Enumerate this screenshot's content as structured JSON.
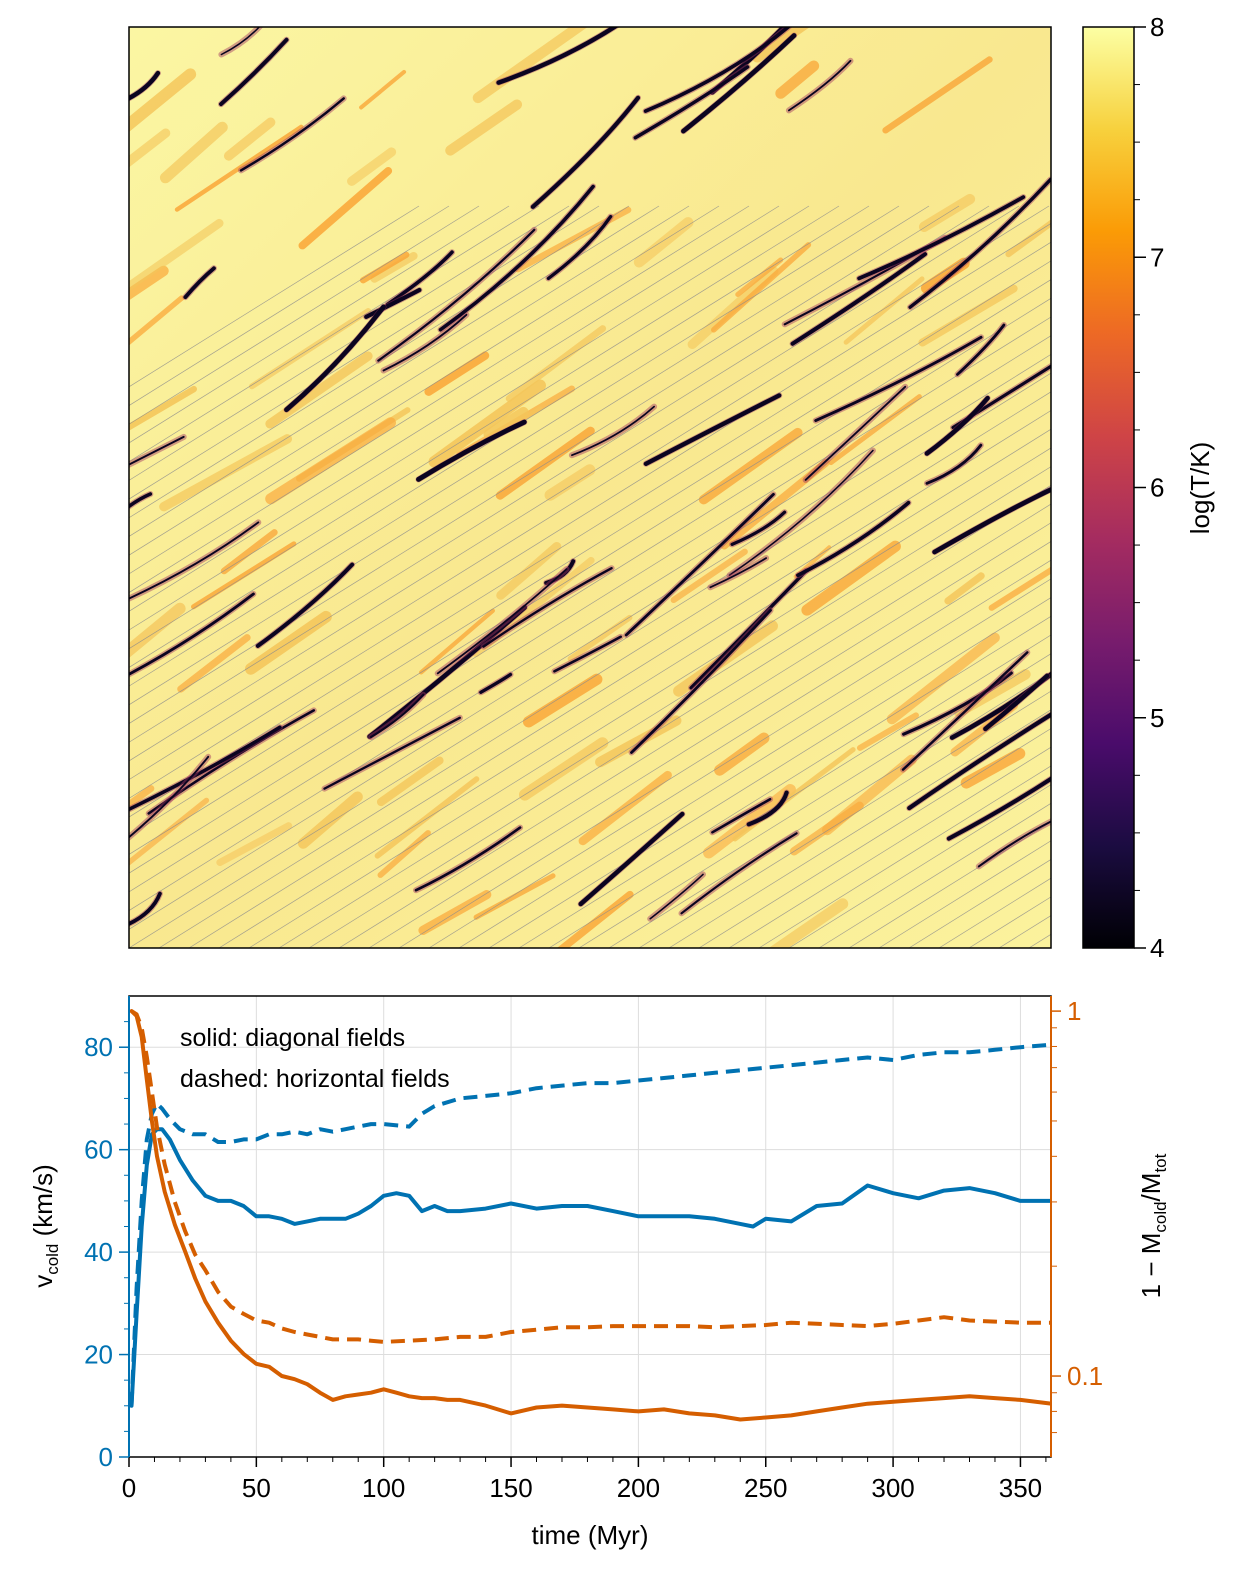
{
  "colors": {
    "blue": "#0072b2",
    "orange": "#d55e00",
    "inferno": [
      "#000004",
      "#1b0c41",
      "#4a0c6b",
      "#781c6d",
      "#a52c60",
      "#cf4446",
      "#ed6925",
      "#fb9b06",
      "#f7d13d",
      "#fcffa4"
    ]
  },
  "chart_data": [
    {
      "type": "heatmap",
      "title": "",
      "colorbar": {
        "label": "log(T/K)",
        "range": [
          4,
          8
        ],
        "ticks": [
          4,
          5,
          6,
          7,
          8
        ],
        "tick_labels": [
          "4",
          "5",
          "6",
          "7",
          "8"
        ],
        "colormap": "inferno"
      },
      "field_lines": "diagonal"
    },
    {
      "type": "line",
      "xlabel": "time (Myr)",
      "ylabel_left": "v",
      "ylabel_left_sub": "cold",
      "ylabel_left_unit": " (km/s)",
      "ylabel_right": "1 − M",
      "ylabel_right_sub1": "cold",
      "ylabel_right_mid": "/M",
      "ylabel_right_sub2": "tot",
      "xlim": [
        0,
        362
      ],
      "ylim_left": [
        0,
        90
      ],
      "ylim_right_log": [
        0.06,
        1.1
      ],
      "x_ticks": [
        0,
        50,
        100,
        150,
        200,
        250,
        300,
        350
      ],
      "x_tick_labels": [
        "0",
        "50",
        "100",
        "150",
        "200",
        "250",
        "300",
        "350"
      ],
      "y_left_ticks": [
        0,
        20,
        40,
        60,
        80
      ],
      "y_left_tick_labels": [
        "0",
        "20",
        "40",
        "60",
        "80"
      ],
      "y_right_ticks": [
        0.1,
        1
      ],
      "y_right_tick_labels": [
        "0.1",
        "1"
      ],
      "legend_line1": "solid: diagonal fields",
      "legend_line2": "dashed: horizontal fields",
      "grid": true,
      "series": [
        {
          "name": "v_cold diagonal",
          "axis": "left",
          "style": "solid",
          "color": "blue",
          "x": [
            1,
            3,
            5,
            7,
            9,
            11,
            13,
            16,
            20,
            25,
            30,
            35,
            40,
            45,
            50,
            55,
            60,
            65,
            70,
            75,
            80,
            85,
            90,
            95,
            100,
            105,
            110,
            115,
            120,
            125,
            130,
            140,
            150,
            160,
            170,
            180,
            190,
            200,
            210,
            220,
            230,
            240,
            245,
            250,
            260,
            270,
            280,
            290,
            300,
            310,
            320,
            330,
            340,
            350,
            362
          ],
          "y": [
            10,
            28,
            45,
            57,
            63,
            64,
            64,
            62,
            58,
            54,
            51,
            50,
            50,
            49,
            47,
            47,
            46.5,
            45.5,
            46,
            46.5,
            46.5,
            46.5,
            47.5,
            49,
            51,
            51.5,
            51,
            48,
            49,
            48,
            48,
            48.5,
            49.5,
            48.5,
            49,
            49,
            48,
            47,
            47,
            47,
            46.5,
            45.5,
            45,
            46.5,
            46,
            49,
            49.5,
            53,
            51.5,
            50.5,
            52,
            52.5,
            51.5,
            50,
            50
          ]
        },
        {
          "name": "v_cold horizontal",
          "axis": "left",
          "style": "dashed",
          "color": "blue",
          "x": [
            1,
            3,
            5,
            7,
            9,
            11,
            13,
            16,
            20,
            25,
            30,
            35,
            40,
            45,
            50,
            55,
            60,
            65,
            70,
            75,
            80,
            85,
            90,
            95,
            100,
            110,
            115,
            120,
            130,
            140,
            150,
            160,
            170,
            180,
            190,
            200,
            210,
            220,
            230,
            240,
            250,
            260,
            270,
            280,
            290,
            300,
            310,
            320,
            330,
            340,
            350,
            362
          ],
          "y": [
            10,
            33,
            50,
            62,
            67,
            69,
            68,
            66,
            64,
            63,
            63,
            61.5,
            61.5,
            62,
            62,
            63,
            63,
            63.5,
            63,
            64,
            63.5,
            64,
            64.5,
            65,
            65,
            64.5,
            67,
            68.5,
            70,
            70.5,
            71,
            72,
            72.5,
            73,
            73,
            73.5,
            74,
            74.5,
            75,
            75.5,
            76,
            76.5,
            77,
            77.5,
            78,
            77.5,
            78.5,
            79,
            79,
            79.5,
            80,
            80.5
          ]
        },
        {
          "name": "1-Mcold/Mtot diagonal",
          "axis": "right",
          "style": "solid",
          "color": "orange",
          "x": [
            1,
            3,
            5,
            7,
            9,
            11,
            14,
            18,
            22,
            26,
            30,
            35,
            40,
            45,
            50,
            55,
            60,
            65,
            70,
            75,
            80,
            85,
            90,
            95,
            100,
            105,
            110,
            115,
            120,
            125,
            130,
            140,
            150,
            160,
            170,
            180,
            190,
            200,
            210,
            220,
            230,
            240,
            250,
            260,
            270,
            280,
            290,
            300,
            310,
            320,
            330,
            340,
            350,
            362
          ],
          "y": [
            1.0,
            0.97,
            0.85,
            0.65,
            0.5,
            0.4,
            0.32,
            0.26,
            0.22,
            0.185,
            0.16,
            0.14,
            0.125,
            0.115,
            0.108,
            0.106,
            0.1,
            0.098,
            0.095,
            0.09,
            0.086,
            0.088,
            0.089,
            0.09,
            0.092,
            0.09,
            0.088,
            0.087,
            0.087,
            0.086,
            0.086,
            0.083,
            0.079,
            0.082,
            0.083,
            0.082,
            0.081,
            0.08,
            0.081,
            0.079,
            0.078,
            0.076,
            0.077,
            0.078,
            0.08,
            0.082,
            0.084,
            0.085,
            0.086,
            0.087,
            0.088,
            0.087,
            0.086,
            0.084
          ]
        },
        {
          "name": "1-Mcold/Mtot horizontal",
          "axis": "right",
          "style": "dashed",
          "color": "orange",
          "x": [
            1,
            3,
            5,
            7,
            9,
            11,
            14,
            18,
            22,
            26,
            30,
            35,
            40,
            45,
            50,
            55,
            60,
            65,
            70,
            75,
            80,
            85,
            90,
            95,
            100,
            110,
            120,
            130,
            140,
            150,
            160,
            170,
            180,
            190,
            200,
            210,
            220,
            230,
            240,
            250,
            260,
            270,
            280,
            290,
            300,
            310,
            320,
            330,
            340,
            350,
            362
          ],
          "y": [
            1.0,
            0.98,
            0.9,
            0.75,
            0.6,
            0.48,
            0.38,
            0.3,
            0.25,
            0.215,
            0.195,
            0.17,
            0.155,
            0.148,
            0.142,
            0.14,
            0.135,
            0.132,
            0.13,
            0.128,
            0.126,
            0.126,
            0.126,
            0.125,
            0.124,
            0.125,
            0.126,
            0.128,
            0.128,
            0.132,
            0.134,
            0.136,
            0.136,
            0.137,
            0.137,
            0.137,
            0.137,
            0.136,
            0.137,
            0.138,
            0.14,
            0.139,
            0.138,
            0.137,
            0.139,
            0.142,
            0.145,
            0.142,
            0.141,
            0.14,
            0.14
          ]
        }
      ]
    }
  ]
}
